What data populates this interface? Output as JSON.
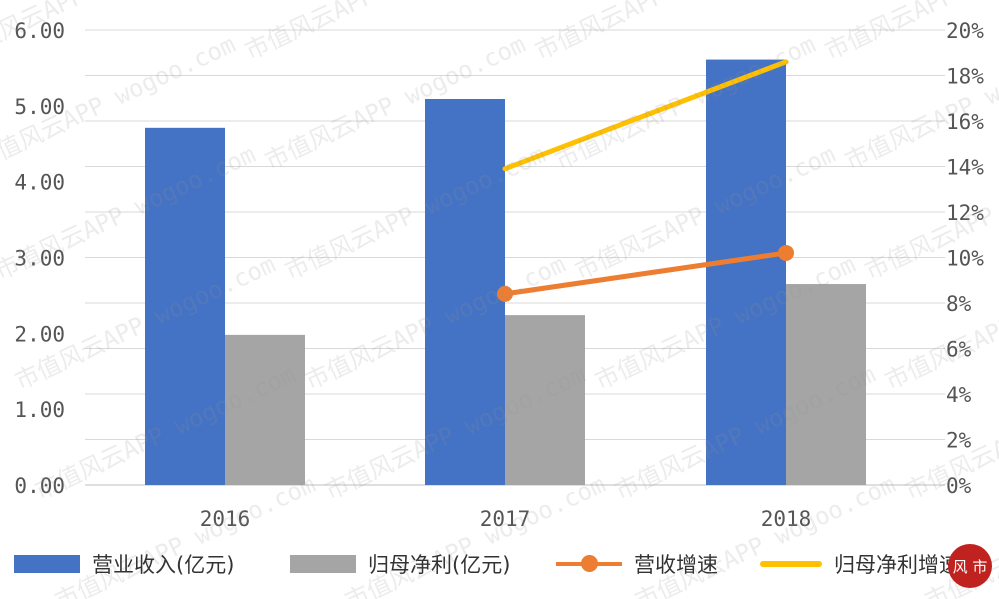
{
  "chart_data": {
    "type": "bar+line",
    "categories": [
      "2016",
      "2017",
      "2018"
    ],
    "series": [
      {
        "name": "营业收入(亿元)",
        "type": "bar",
        "axis": "left",
        "color": "#4472c4",
        "values": [
          4.71,
          5.09,
          5.61
        ]
      },
      {
        "name": "归母净利(亿元)",
        "type": "bar",
        "axis": "left",
        "color": "#a5a5a5",
        "values": [
          1.98,
          2.24,
          2.65
        ]
      },
      {
        "name": "营收增速",
        "type": "line",
        "axis": "right",
        "marker": "circle",
        "color": "#ed7d31",
        "values": [
          null,
          8.4,
          10.2
        ]
      },
      {
        "name": "归母净利增速",
        "type": "line",
        "axis": "right",
        "color": "#ffc000",
        "values": [
          null,
          13.9,
          18.6
        ]
      }
    ],
    "y_left": {
      "range": [
        0,
        6
      ],
      "ticks": [
        "0.00",
        "1.00",
        "2.00",
        "3.00",
        "4.00",
        "5.00",
        "6.00"
      ]
    },
    "y_right": {
      "range": [
        0,
        20
      ],
      "ticks": [
        "0%",
        "2%",
        "4%",
        "6%",
        "8%",
        "10%",
        "12%",
        "14%",
        "16%",
        "18%",
        "20%"
      ]
    },
    "grid": true,
    "legend": "bottom"
  },
  "watermark": "市值风云APP wogoo.com",
  "logo_text": "市值风云"
}
